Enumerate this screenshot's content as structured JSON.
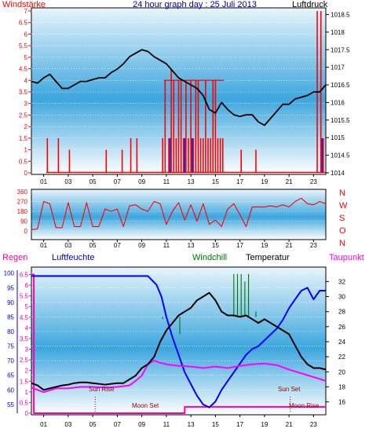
{
  "header": {
    "title": "24 hour graph day : 25 Juli 2013",
    "left_label": "Windstärke",
    "right_label": "Luftdruck"
  },
  "colors": {
    "wind": "#ff0000",
    "pressure": "#000000",
    "direction": "#ff0000",
    "humidity": "#0000ff",
    "temperature": "#000000",
    "dewpoint": "#ff00ff",
    "windchill": "#007700",
    "rain": "#ff00aa",
    "moon": "#cc0000"
  },
  "x_ticks": [
    "01",
    "03",
    "05",
    "07",
    "09",
    "11",
    "13",
    "15",
    "17",
    "19",
    "21",
    "23"
  ],
  "chart_data": [
    {
      "type": "line",
      "name": "wind-pressure-panel",
      "y_left": {
        "label": "Windstärke",
        "ticks": [
          "0",
          "0.5",
          "1",
          "1.5",
          "2",
          "2.5",
          "3",
          "3.5",
          "4",
          "4.5",
          "5",
          "5.5",
          "6",
          "6.5",
          "7"
        ],
        "range": [
          0,
          7
        ]
      },
      "y_right": {
        "label": "Luftdruck",
        "ticks": [
          "1014",
          "1014.5",
          "1015",
          "1015.5",
          "1016",
          "1016.5",
          "1017",
          "1017.5",
          "1018",
          "1018.5"
        ],
        "range": [
          1014,
          1018.6
        ]
      },
      "series": [
        {
          "name": "Luftdruck",
          "axis": "right",
          "x": [
            0,
            0.5,
            1,
            1.5,
            2,
            2.5,
            3,
            3.5,
            4,
            4.5,
            5,
            5.5,
            6,
            6.5,
            7,
            7.5,
            8,
            8.5,
            9,
            9.5,
            10,
            10.5,
            11,
            11.5,
            12,
            12.5,
            13,
            13.5,
            14,
            14.5,
            15,
            15.5,
            16,
            16.5,
            17,
            17.5,
            18,
            18.5,
            19,
            19.5,
            20,
            20.5,
            21,
            21.5,
            22,
            22.5,
            23,
            23.5,
            24
          ],
          "y": [
            1016.6,
            1016.55,
            1016.7,
            1016.8,
            1016.6,
            1016.4,
            1016.4,
            1016.5,
            1016.6,
            1016.6,
            1016.65,
            1016.7,
            1016.7,
            1016.85,
            1016.95,
            1017.1,
            1017.3,
            1017.4,
            1017.5,
            1017.45,
            1017.3,
            1017.2,
            1017.1,
            1016.9,
            1016.7,
            1016.6,
            1016.5,
            1016.4,
            1016.2,
            1015.8,
            1015.7,
            1016.0,
            1015.8,
            1015.65,
            1015.6,
            1015.65,
            1015.65,
            1015.45,
            1015.35,
            1015.55,
            1015.75,
            1015.95,
            1015.95,
            1016.1,
            1016.15,
            1016.2,
            1016.3,
            1016.3,
            1016.5
          ]
        },
        {
          "name": "Windstärke",
          "axis": "left",
          "style": "spikes",
          "x": [
            1.3,
            2.2,
            3.1,
            6.1,
            7.4,
            8.1,
            8.6,
            10.7,
            10.9,
            11.2,
            11.4,
            11.6,
            11.8,
            12.0,
            12.2,
            12.4,
            12.6,
            12.8,
            13.0,
            13.2,
            13.4,
            13.6,
            13.8,
            14.0,
            14.2,
            14.4,
            14.6,
            14.8,
            15.0,
            15.2,
            15.4,
            15.6,
            17.1,
            18.3,
            23.3,
            23.6,
            23.8
          ],
          "y": [
            1.5,
            1.5,
            1.0,
            1.0,
            1.0,
            1.5,
            1.5,
            1.5,
            4.0,
            1.5,
            4.5,
            4.0,
            1.5,
            4.0,
            4.0,
            1.5,
            4.0,
            1.5,
            4.0,
            1.5,
            4.0,
            4.0,
            1.5,
            1.5,
            4.0,
            1.5,
            1.5,
            4.0,
            4.0,
            1.5,
            1.5,
            1.5,
            1.0,
            1.0,
            7.0,
            7.0,
            1.5
          ]
        }
      ]
    },
    {
      "type": "line",
      "name": "wind-direction-panel",
      "y_left": {
        "ticks": [
          "0",
          "90",
          "180",
          "270",
          "360"
        ],
        "range": [
          0,
          360
        ]
      },
      "y_right_letters": [
        "N",
        "W",
        "S",
        "O",
        "N"
      ],
      "series": [
        {
          "name": "Windrichtung",
          "axis": "left",
          "x": [
            0,
            0.5,
            1,
            1.5,
            2,
            2.5,
            3,
            3.5,
            4,
            4.5,
            5,
            5.5,
            6,
            6.5,
            7,
            7.5,
            8,
            8.5,
            9,
            9.5,
            10,
            10.5,
            11,
            11.5,
            12,
            12.5,
            13,
            13.5,
            14,
            14.5,
            15,
            15.5,
            16,
            16.5,
            17,
            17.5,
            18,
            18.5,
            19,
            19.5,
            20,
            20.5,
            21,
            21.5,
            22,
            22.5,
            23,
            23.5,
            24
          ],
          "y": [
            10,
            20,
            270,
            250,
            30,
            30,
            260,
            40,
            40,
            260,
            40,
            40,
            200,
            180,
            200,
            40,
            230,
            240,
            200,
            180,
            270,
            250,
            60,
            180,
            260,
            100,
            240,
            90,
            250,
            60,
            100,
            40,
            200,
            250,
            150,
            40,
            220,
            220,
            220,
            230,
            220,
            240,
            220,
            270,
            300,
            250,
            240,
            270,
            250
          ]
        }
      ]
    },
    {
      "type": "line",
      "name": "climate-panel",
      "legend": [
        "Regen",
        "Luftfeuchte",
        "Windchill",
        "Temperatur",
        "Taupunkt"
      ],
      "y_left": {
        "label": "Luftfeuchte",
        "ticks": [
          "55",
          "60",
          "65",
          "70",
          "75",
          "80",
          "85",
          "90",
          "95",
          "100"
        ],
        "range": [
          52,
          101
        ]
      },
      "y_rain": {
        "label": "Regen",
        "ticks": [
          "0",
          "0.5",
          "1",
          "1.5",
          "2",
          "2.5",
          "3",
          "3.5",
          "4",
          "4.5",
          "5",
          "5.5",
          "6",
          "6.5"
        ],
        "range": [
          0,
          6.7
        ]
      },
      "y_right": {
        "label": "Temperatur",
        "ticks": [
          "16",
          "18",
          "20",
          "22",
          "24",
          "26",
          "28",
          "30",
          "32"
        ],
        "range": [
          14.5,
          33.5
        ]
      },
      "annotations": [
        "Sun Rise",
        "Moon Set",
        "Sun Set",
        "Moon Rise"
      ],
      "series": [
        {
          "name": "Luftfeuchte",
          "axis": "left",
          "x": [
            0,
            9.5,
            10.2,
            10.6,
            11,
            11.5,
            12,
            12.5,
            13,
            13.5,
            14,
            14.5,
            15,
            15.5,
            16,
            16.5,
            17,
            17.5,
            18,
            18.5,
            19,
            19.5,
            20,
            20.5,
            21,
            21.5,
            22,
            22.5,
            23,
            23.5,
            24
          ],
          "y": [
            99,
            99,
            96,
            92,
            85,
            78,
            72,
            66,
            62,
            58,
            55,
            54,
            56,
            60,
            63,
            66,
            69,
            72,
            74,
            75,
            77,
            79,
            81,
            84,
            88,
            91,
            94,
            95,
            91,
            94,
            94
          ]
        },
        {
          "name": "Temperatur",
          "axis": "right",
          "x": [
            0,
            0.5,
            1,
            1.5,
            2,
            2.5,
            3,
            3.5,
            4,
            4.5,
            5,
            5.5,
            6,
            6.5,
            7,
            7.5,
            8,
            8.5,
            9,
            9.5,
            10,
            10.5,
            11,
            11.5,
            12,
            12.5,
            13,
            13.5,
            14,
            14.5,
            15,
            15.5,
            16,
            16.5,
            17,
            17.5,
            18,
            18.5,
            19,
            19.5,
            20,
            20.5,
            21,
            21.5,
            22,
            22.5,
            23,
            23.5,
            24
          ],
          "y": [
            18.5,
            18.2,
            17.6,
            17.8,
            18.0,
            18.2,
            18.3,
            18.5,
            18.6,
            18.6,
            18.5,
            18.4,
            18.3,
            18.4,
            18.5,
            18.5,
            19.0,
            19.5,
            20.5,
            21.0,
            22.0,
            24.0,
            25.5,
            26.5,
            27.5,
            28.0,
            28.5,
            29.5,
            30.0,
            30.5,
            29.5,
            28.0,
            27.5,
            27.5,
            27.3,
            27.5,
            27.0,
            26.5,
            27.0,
            26.5,
            26.0,
            25.5,
            25.0,
            23.5,
            22.0,
            21.0,
            20.5,
            20.5,
            20.3
          ]
        },
        {
          "name": "Taupunkt",
          "axis": "right",
          "x": [
            0,
            1,
            2,
            3,
            4,
            5,
            6,
            7,
            8,
            8.5,
            9,
            9.5,
            10,
            10.5,
            11,
            12,
            13,
            14,
            15,
            16,
            17,
            18,
            19,
            20,
            21,
            22,
            23,
            24
          ],
          "y": [
            17.9,
            17.3,
            17.8,
            17.8,
            18.0,
            18.0,
            17.9,
            18.0,
            18.2,
            18.8,
            19.5,
            21.0,
            21.5,
            21.2,
            21.0,
            20.8,
            20.7,
            20.5,
            20.7,
            20.5,
            20.8,
            21.0,
            21.1,
            20.9,
            20.3,
            19.8,
            19.3,
            18.8
          ]
        },
        {
          "name": "Windchill",
          "axis": "right",
          "style": "spikes",
          "x": [
            10.7,
            12.1,
            16.5,
            16.8,
            17.1,
            17.4,
            17.7,
            18.3
          ],
          "y": [
            27,
            25,
            33,
            33,
            33,
            32,
            33,
            28
          ]
        },
        {
          "name": "Regen",
          "axis": "rain",
          "style": "step",
          "x": [
            0,
            0.2,
            0.2,
            12.5,
            12.5,
            24
          ],
          "y": [
            6.5,
            6.5,
            0,
            0,
            0.3,
            0.3
          ]
        }
      ]
    }
  ]
}
